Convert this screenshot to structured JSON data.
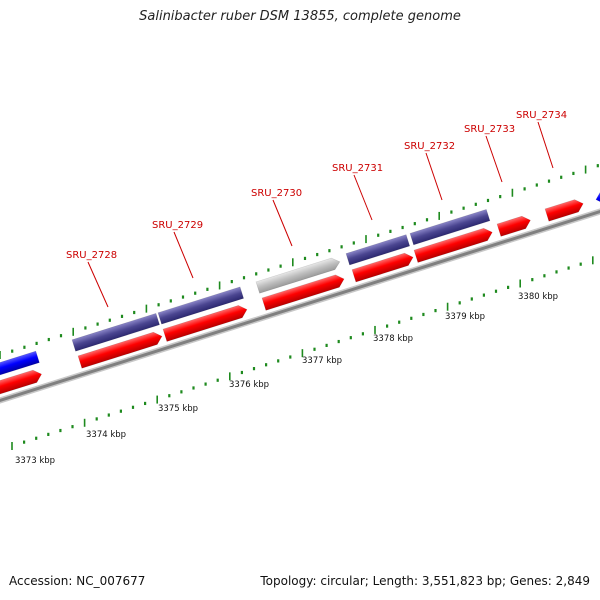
{
  "title": "Salinibacter ruber DSM 13855, complete genome",
  "accession": "Accession: NC_007677",
  "summary": "Topology: circular; Length: 3,551,823 bp; Genes: 2,849",
  "colors": {
    "forward_gene": "#ff0000",
    "reverse_gene": "#0000ff",
    "cds_feature": "#4a4590",
    "other_feature": "#bdbdbd",
    "backbone": "#8a8a8a",
    "label": "#cc0000",
    "tick": "#1e8a1e"
  },
  "scale": {
    "unit": "kbp",
    "tick_labels": [
      "3373 kbp",
      "3374 kbp",
      "3375 kbp",
      "3376 kbp",
      "3377 kbp",
      "3378 kbp",
      "3379 kbp",
      "3380 kbp"
    ]
  },
  "features": [
    {
      "id": "f1",
      "strand": "reverse",
      "type": "gene",
      "label": ""
    },
    {
      "id": "f2",
      "strand": "forward",
      "type": "gene",
      "label": ""
    },
    {
      "id": "f3",
      "strand": "forward",
      "type": "cds",
      "label": ""
    },
    {
      "id": "f4",
      "strand": "forward",
      "type": "gene",
      "label": "SRU_2728"
    },
    {
      "id": "f5",
      "strand": "forward",
      "type": "cds",
      "label": ""
    },
    {
      "id": "f6",
      "strand": "forward",
      "type": "gene",
      "label": "SRU_2729"
    },
    {
      "id": "f7",
      "strand": "forward",
      "type": "other",
      "label": ""
    },
    {
      "id": "f8",
      "strand": "forward",
      "type": "gene",
      "label": "SRU_2730"
    },
    {
      "id": "f9",
      "strand": "forward",
      "type": "cds",
      "label": ""
    },
    {
      "id": "f10",
      "strand": "forward",
      "type": "gene",
      "label": "SRU_2731"
    },
    {
      "id": "f11",
      "strand": "forward",
      "type": "cds",
      "label": ""
    },
    {
      "id": "f12",
      "strand": "forward",
      "type": "gene",
      "label": "SRU_2732"
    },
    {
      "id": "f13",
      "strand": "forward",
      "type": "gene",
      "label": "SRU_2733"
    },
    {
      "id": "f14",
      "strand": "forward",
      "type": "gene",
      "label": "SRU_2734"
    },
    {
      "id": "f15",
      "strand": "reverse",
      "type": "gene",
      "label": ""
    }
  ]
}
